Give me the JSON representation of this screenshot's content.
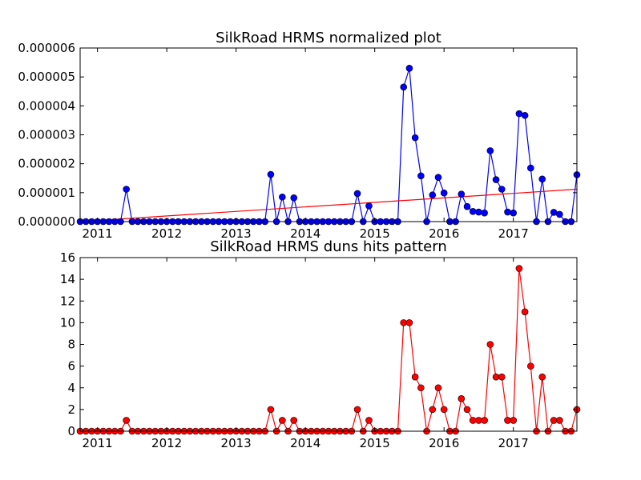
{
  "colors": {
    "series1_line": "#0000ff",
    "series1_marker": "#0000ff",
    "trend_line": "#ff0000",
    "series2_line": "#ff0000",
    "series2_marker": "#ff0000"
  },
  "chart_data": [
    {
      "type": "line",
      "title": "SilkRoad HRMS normalized plot",
      "xlabel": "",
      "ylabel": "",
      "x_tick_labels": [
        "2011",
        "2012",
        "2013",
        "2014",
        "2015",
        "2016",
        "2017"
      ],
      "y_tick_labels": [
        "0.000000",
        "0.000001",
        "0.000002",
        "0.000003",
        "0.000004",
        "0.000005",
        "0.000006"
      ],
      "xlim": [
        "2010-10",
        "2017-12"
      ],
      "ylim": [
        0,
        6e-06
      ],
      "grid": false,
      "marker": "circle",
      "x": [
        "2010-10",
        "2010-11",
        "2010-12",
        "2011-01",
        "2011-02",
        "2011-03",
        "2011-04",
        "2011-05",
        "2011-06",
        "2011-07",
        "2011-08",
        "2011-09",
        "2011-10",
        "2011-11",
        "2011-12",
        "2012-01",
        "2012-02",
        "2012-03",
        "2012-04",
        "2012-05",
        "2012-06",
        "2012-07",
        "2012-08",
        "2012-09",
        "2012-10",
        "2012-11",
        "2012-12",
        "2013-01",
        "2013-02",
        "2013-03",
        "2013-04",
        "2013-05",
        "2013-06",
        "2013-07",
        "2013-08",
        "2013-09",
        "2013-10",
        "2013-11",
        "2013-12",
        "2014-01",
        "2014-02",
        "2014-03",
        "2014-04",
        "2014-05",
        "2014-06",
        "2014-07",
        "2014-08",
        "2014-09",
        "2014-10",
        "2014-11",
        "2014-12",
        "2015-01",
        "2015-02",
        "2015-03",
        "2015-04",
        "2015-05",
        "2015-06",
        "2015-07",
        "2015-08",
        "2015-09",
        "2015-10",
        "2015-11",
        "2015-12",
        "2016-01",
        "2016-02",
        "2016-03",
        "2016-04",
        "2016-05",
        "2016-06",
        "2016-07",
        "2016-08",
        "2016-09",
        "2016-10",
        "2016-11",
        "2016-12",
        "2017-01",
        "2017-02",
        "2017-03",
        "2017-04",
        "2017-05",
        "2017-06",
        "2017-07",
        "2017-08",
        "2017-09",
        "2017-10",
        "2017-11",
        "2017-12"
      ],
      "series": [
        {
          "values": [
            0,
            0,
            0,
            0,
            0,
            0,
            0,
            0,
            1.12e-06,
            0,
            0,
            0,
            0,
            0,
            0,
            0,
            0,
            0,
            0,
            0,
            0,
            0,
            0,
            0,
            0,
            0,
            0,
            0,
            0,
            0,
            0,
            0,
            0,
            1.63e-06,
            0,
            8.5e-07,
            0,
            8.2e-07,
            0,
            0,
            0,
            0,
            0,
            0,
            0,
            0,
            0,
            0,
            9.7e-07,
            0,
            5.4e-07,
            0,
            0,
            0,
            0,
            0,
            4.65e-06,
            5.3e-06,
            2.9e-06,
            1.58e-06,
            0,
            9.2e-07,
            1.53e-06,
            9.9e-07,
            0,
            0,
            9.5e-07,
            5.2e-07,
            3.5e-07,
            3.3e-07,
            3e-07,
            2.45e-06,
            1.45e-06,
            1.12e-06,
            3.3e-07,
            3e-07,
            3.73e-06,
            3.67e-06,
            1.85e-06,
            0,
            1.47e-06,
            0,
            3.2e-07,
            2.5e-07,
            0,
            0,
            1.62e-06
          ]
        }
      ],
      "trend_line": {
        "start": [
          "2010-10",
          0
        ],
        "end": [
          "2017-12",
          1.12e-06
        ]
      }
    },
    {
      "type": "line",
      "title": "SilkRoad HRMS duns hits pattern",
      "xlabel": "",
      "ylabel": "",
      "x_tick_labels": [
        "2011",
        "2012",
        "2013",
        "2014",
        "2015",
        "2016",
        "2017"
      ],
      "y_tick_labels": [
        "0",
        "2",
        "4",
        "6",
        "8",
        "10",
        "12",
        "14",
        "16"
      ],
      "xlim": [
        "2010-10",
        "2017-12"
      ],
      "ylim": [
        0,
        16
      ],
      "grid": false,
      "marker": "circle",
      "x": [
        "2010-10",
        "2010-11",
        "2010-12",
        "2011-01",
        "2011-02",
        "2011-03",
        "2011-04",
        "2011-05",
        "2011-06",
        "2011-07",
        "2011-08",
        "2011-09",
        "2011-10",
        "2011-11",
        "2011-12",
        "2012-01",
        "2012-02",
        "2012-03",
        "2012-04",
        "2012-05",
        "2012-06",
        "2012-07",
        "2012-08",
        "2012-09",
        "2012-10",
        "2012-11",
        "2012-12",
        "2013-01",
        "2013-02",
        "2013-03",
        "2013-04",
        "2013-05",
        "2013-06",
        "2013-07",
        "2013-08",
        "2013-09",
        "2013-10",
        "2013-11",
        "2013-12",
        "2014-01",
        "2014-02",
        "2014-03",
        "2014-04",
        "2014-05",
        "2014-06",
        "2014-07",
        "2014-08",
        "2014-09",
        "2014-10",
        "2014-11",
        "2014-12",
        "2015-01",
        "2015-02",
        "2015-03",
        "2015-04",
        "2015-05",
        "2015-06",
        "2015-07",
        "2015-08",
        "2015-09",
        "2015-10",
        "2015-11",
        "2015-12",
        "2016-01",
        "2016-02",
        "2016-03",
        "2016-04",
        "2016-05",
        "2016-06",
        "2016-07",
        "2016-08",
        "2016-09",
        "2016-10",
        "2016-11",
        "2016-12",
        "2017-01",
        "2017-02",
        "2017-03",
        "2017-04",
        "2017-05",
        "2017-06",
        "2017-07",
        "2017-08",
        "2017-09",
        "2017-10",
        "2017-11",
        "2017-12"
      ],
      "series": [
        {
          "values": [
            0,
            0,
            0,
            0,
            0,
            0,
            0,
            0,
            1,
            0,
            0,
            0,
            0,
            0,
            0,
            0,
            0,
            0,
            0,
            0,
            0,
            0,
            0,
            0,
            0,
            0,
            0,
            0,
            0,
            0,
            0,
            0,
            0,
            2,
            0,
            1,
            0,
            1,
            0,
            0,
            0,
            0,
            0,
            0,
            0,
            0,
            0,
            0,
            2,
            0,
            1,
            0,
            0,
            0,
            0,
            0,
            10,
            10,
            5,
            4,
            0,
            2,
            4,
            2,
            0,
            0,
            3,
            2,
            1,
            1,
            1,
            8,
            5,
            5,
            1,
            1,
            15,
            11,
            6,
            0,
            5,
            0,
            1,
            1,
            0,
            0,
            2
          ]
        }
      ]
    }
  ]
}
